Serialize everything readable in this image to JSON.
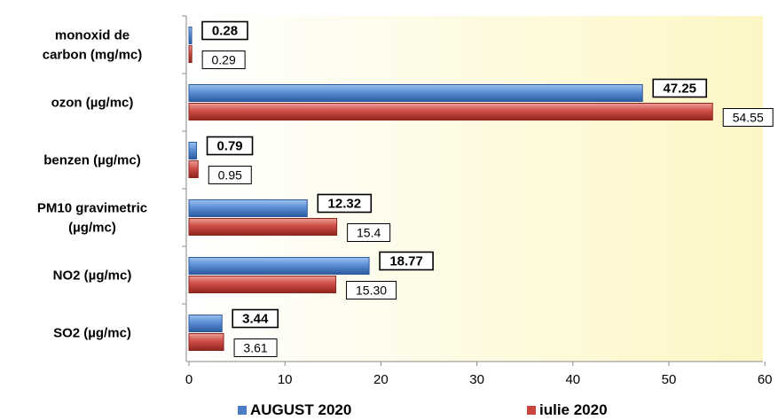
{
  "chart_data": {
    "type": "bar",
    "orientation": "horizontal",
    "categories": [
      "monoxid de carbon (mg/mc)",
      "ozon (µg/mc)",
      "benzen (µg/mc)",
      "PM10 gravimetric (µg/mc)",
      "NO2 (µg/mc)",
      "SO2 (µg/mc)"
    ],
    "category_lines": [
      [
        "monoxid de",
        "carbon (mg/mc)"
      ],
      [
        "ozon (µg/mc)"
      ],
      [
        "benzen (µg/mc)"
      ],
      [
        "PM10 gravimetric",
        "(µg/mc)"
      ],
      [
        "NO2 (µg/mc)"
      ],
      [
        "SO2 (µg/mc)"
      ]
    ],
    "series": [
      {
        "name": "AUGUST 2020",
        "color": "#4a7cc4",
        "values": [
          0.28,
          47.25,
          0.79,
          12.32,
          18.77,
          3.44
        ],
        "labels": [
          "0.28",
          "47.25",
          "0.79",
          "12.32",
          "18.77",
          "3.44"
        ]
      },
      {
        "name": "iulie 2020",
        "color": "#c8463f",
        "values": [
          0.29,
          54.55,
          0.95,
          15.4,
          15.3,
          3.61
        ],
        "labels": [
          "0.29",
          "54.55",
          "0.95",
          "15.4",
          "15.30",
          "3.61"
        ]
      }
    ],
    "xlim": [
      0,
      60
    ],
    "xticks": [
      0,
      10,
      20,
      30,
      40,
      50,
      60
    ],
    "title": "",
    "xlabel": "",
    "ylabel": "",
    "grid": false,
    "legend_position": "bottom"
  }
}
